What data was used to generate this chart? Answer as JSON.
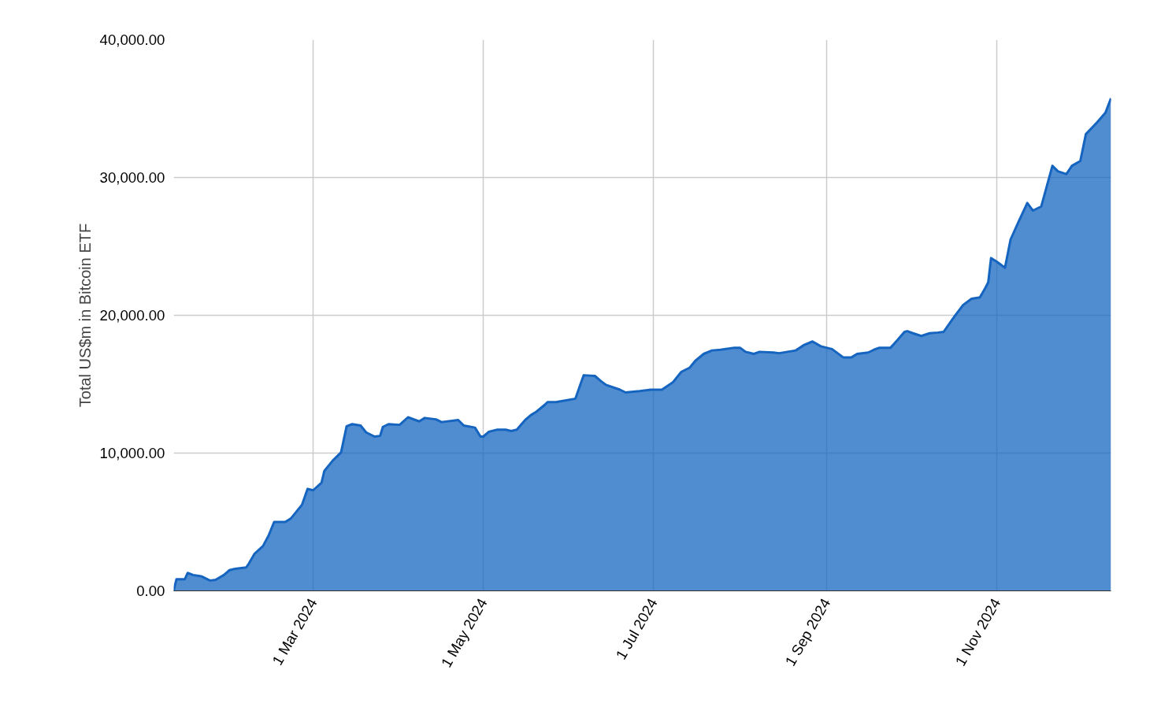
{
  "chart_data": {
    "type": "area",
    "ylabel": "Total US$m in Bitcoin ETF",
    "xlim": [
      "2024-01-11",
      "2024-12-12"
    ],
    "xticks": [
      {
        "value": "2024-03-01",
        "label": "1 Mar 2024"
      },
      {
        "value": "2024-05-01",
        "label": "1 May 2024"
      },
      {
        "value": "2024-07-01",
        "label": "1 Jul 2024"
      },
      {
        "value": "2024-09-01",
        "label": "1 Sep 2024"
      },
      {
        "value": "2024-11-01",
        "label": "1 Nov 2024"
      }
    ],
    "ylim": [
      0,
      40000
    ],
    "yticks": [
      {
        "value": 0,
        "label": "0.00"
      },
      {
        "value": 10000,
        "label": "10,000.00"
      },
      {
        "value": 20000,
        "label": "20,000.00"
      },
      {
        "value": 30000,
        "label": "30,000.00"
      },
      {
        "value": 40000,
        "label": "40,000.00"
      }
    ],
    "grid": true,
    "x": [
      "2024-01-11",
      "2024-01-12",
      "2024-01-15",
      "2024-01-16",
      "2024-01-18",
      "2024-01-21",
      "2024-01-24",
      "2024-01-26",
      "2024-01-29",
      "2024-01-31",
      "2024-02-02",
      "2024-02-06",
      "2024-02-07",
      "2024-02-09",
      "2024-02-12",
      "2024-02-14",
      "2024-02-16",
      "2024-02-20",
      "2024-02-22",
      "2024-02-24",
      "2024-02-26",
      "2024-02-28",
      "2024-03-01",
      "2024-03-04",
      "2024-03-05",
      "2024-03-08",
      "2024-03-11",
      "2024-03-13",
      "2024-03-15",
      "2024-03-18",
      "2024-03-20",
      "2024-03-23",
      "2024-03-25",
      "2024-03-26",
      "2024-03-28",
      "2024-04-01",
      "2024-04-04",
      "2024-04-08",
      "2024-04-10",
      "2024-04-14",
      "2024-04-16",
      "2024-04-22",
      "2024-04-24",
      "2024-04-28",
      "2024-04-30",
      "2024-05-01",
      "2024-05-03",
      "2024-05-06",
      "2024-05-09",
      "2024-05-11",
      "2024-05-13",
      "2024-05-16",
      "2024-05-18",
      "2024-05-20",
      "2024-05-23",
      "2024-05-24",
      "2024-05-27",
      "2024-06-03",
      "2024-06-05",
      "2024-06-06",
      "2024-06-10",
      "2024-06-12",
      "2024-06-14",
      "2024-06-19",
      "2024-06-21",
      "2024-06-26",
      "2024-06-30",
      "2024-07-04",
      "2024-07-08",
      "2024-07-11",
      "2024-07-14",
      "2024-07-16",
      "2024-07-19",
      "2024-07-22",
      "2024-07-25",
      "2024-07-30",
      "2024-08-01",
      "2024-08-03",
      "2024-08-06",
      "2024-08-08",
      "2024-08-13",
      "2024-08-15",
      "2024-08-21",
      "2024-08-24",
      "2024-08-27",
      "2024-08-30",
      "2024-09-03",
      "2024-09-07",
      "2024-09-10",
      "2024-09-12",
      "2024-09-16",
      "2024-09-18",
      "2024-09-20",
      "2024-09-24",
      "2024-09-26",
      "2024-09-29",
      "2024-09-30",
      "2024-10-02",
      "2024-10-05",
      "2024-10-08",
      "2024-10-11",
      "2024-10-13",
      "2024-10-17",
      "2024-10-20",
      "2024-10-23",
      "2024-10-26",
      "2024-10-28",
      "2024-10-29",
      "2024-10-30",
      "2024-11-01",
      "2024-11-04",
      "2024-11-06",
      "2024-11-09",
      "2024-11-12",
      "2024-11-14",
      "2024-11-17",
      "2024-11-21",
      "2024-11-23",
      "2024-11-26",
      "2024-11-28",
      "2024-12-01",
      "2024-12-03",
      "2024-12-07",
      "2024-12-10",
      "2024-12-12"
    ],
    "series": [
      {
        "color": "#1565c0",
        "values": [
          0,
          850,
          850,
          1300,
          1150,
          1050,
          750,
          800,
          1150,
          1500,
          1600,
          1700,
          2000,
          2700,
          3250,
          4000,
          5000,
          5000,
          5250,
          5750,
          6250,
          7400,
          7300,
          7850,
          8700,
          9450,
          10050,
          11950,
          12100,
          12000,
          11500,
          11200,
          11250,
          11900,
          12100,
          12050,
          12600,
          12300,
          12550,
          12450,
          12250,
          12400,
          12000,
          11850,
          11200,
          11200,
          11550,
          11700,
          11700,
          11600,
          11700,
          12400,
          12750,
          13000,
          13500,
          13700,
          13700,
          13950,
          15100,
          15650,
          15600,
          15250,
          14950,
          14600,
          14400,
          14500,
          14600,
          14600,
          15150,
          15900,
          16200,
          16700,
          17200,
          17450,
          17500,
          17650,
          17650,
          17350,
          17200,
          17350,
          17300,
          17250,
          17450,
          17850,
          18100,
          17750,
          17550,
          16950,
          16950,
          17200,
          17300,
          17500,
          17650,
          17650,
          18100,
          18800,
          18850,
          18700,
          18500,
          18700,
          18750,
          18800,
          19950,
          20750,
          21200,
          21300,
          22000,
          22400,
          24150,
          23900,
          23450,
          25500,
          26850,
          28150,
          27600,
          27900,
          30850,
          30450,
          30250,
          30850,
          31200,
          33150,
          34000,
          34700,
          35750
        ]
      }
    ]
  }
}
